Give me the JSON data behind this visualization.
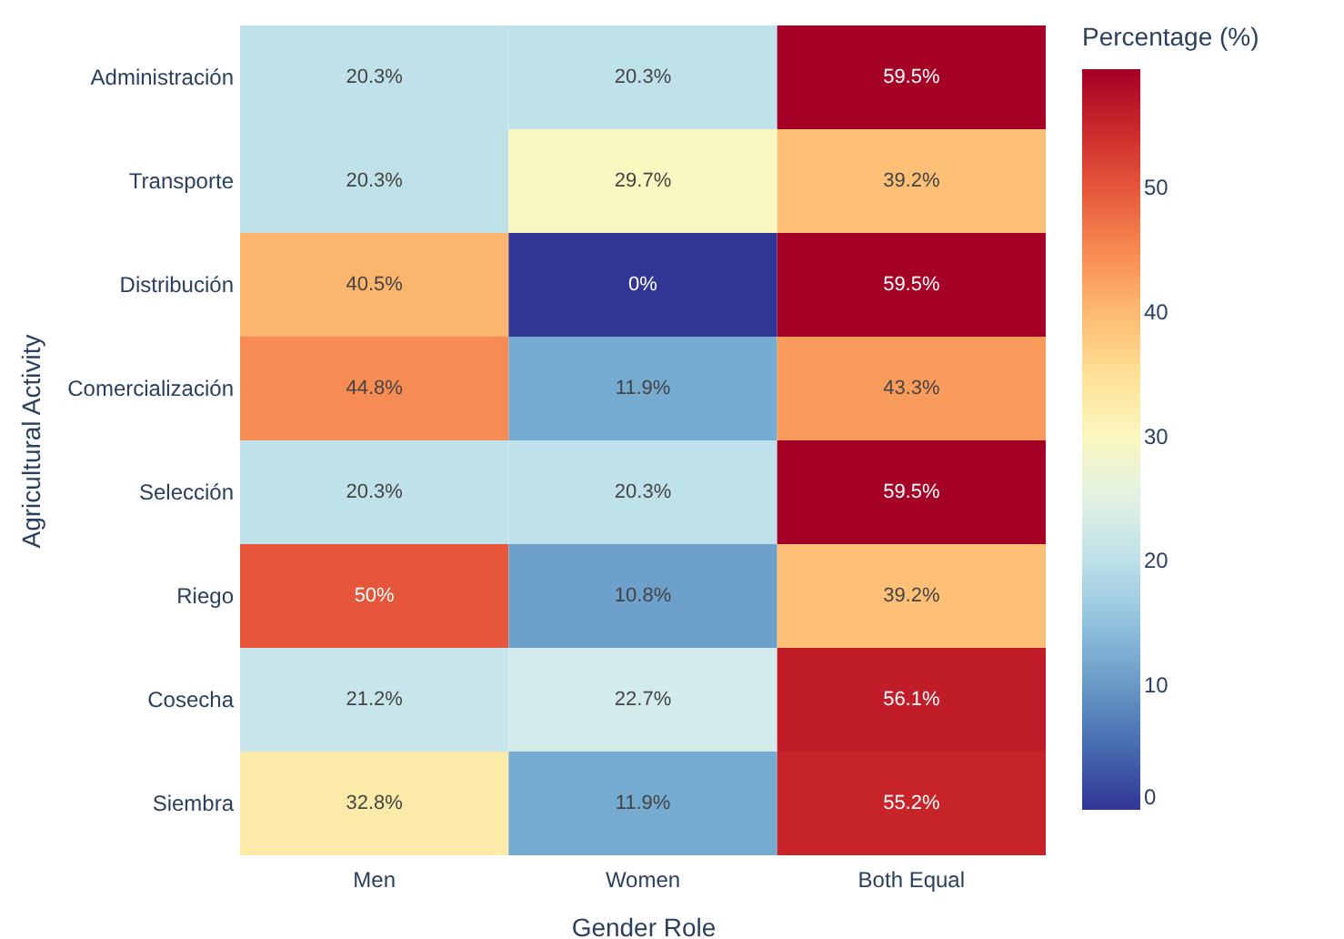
{
  "chart_data": {
    "type": "heatmap",
    "xlabel": "Gender Role",
    "ylabel": "Agricultural Activity",
    "clabel": "Percentage (%)",
    "categories": [
      "Men",
      "Women",
      "Both Equal"
    ],
    "y_categories": [
      "Administración",
      "Transporte",
      "Distribución",
      "Comercialización",
      "Selección",
      "Riego",
      "Cosecha",
      "Siembra"
    ],
    "cells": [
      [
        20.3,
        20.3,
        59.5
      ],
      [
        20.3,
        29.7,
        39.2
      ],
      [
        40.5,
        0,
        59.5
      ],
      [
        44.8,
        11.9,
        43.3
      ],
      [
        20.3,
        20.3,
        59.5
      ],
      [
        50,
        10.8,
        39.2
      ],
      [
        21.2,
        22.7,
        56.1
      ],
      [
        32.8,
        11.9,
        55.2
      ]
    ],
    "cell_labels": [
      [
        "20.3%",
        "20.3%",
        "59.5%"
      ],
      [
        "20.3%",
        "29.7%",
        "39.2%"
      ],
      [
        "40.5%",
        "0%",
        "59.5%"
      ],
      [
        "44.8%",
        "11.9%",
        "43.3%"
      ],
      [
        "20.3%",
        "20.3%",
        "59.5%"
      ],
      [
        "50%",
        "10.8%",
        "39.2%"
      ],
      [
        "21.2%",
        "22.7%",
        "56.1%"
      ],
      [
        "32.8%",
        "11.9%",
        "55.2%"
      ]
    ],
    "clim": [
      0,
      59.5
    ],
    "cticks": [
      0,
      10,
      20,
      30,
      40,
      50
    ]
  }
}
